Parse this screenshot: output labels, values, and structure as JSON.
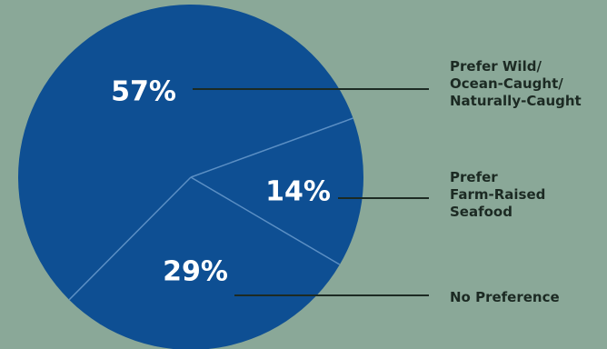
{
  "colors": {
    "background": "#8aa898",
    "slice_fill": "#0e4f93",
    "slice_divider": "#5b8fc4",
    "leader_line": "#1c2a23",
    "percent_text": "#ffffff",
    "legend_text": "#1c2a23"
  },
  "chart_data": {
    "type": "pie",
    "slices": [
      {
        "label": "Prefer Wild/ Ocean-Caught/ Naturally-Caught",
        "label_lines": [
          "Prefer Wild/",
          "Ocean-Caught/",
          "Naturally-Caught"
        ],
        "value": 57,
        "display": "57%"
      },
      {
        "label": "Prefer Farm-Raised Seafood",
        "label_lines": [
          "Prefer",
          "Farm-Raised",
          "Seafood"
        ],
        "value": 14,
        "display": "14%"
      },
      {
        "label": "No Preference",
        "label_lines": [
          "No Preference"
        ],
        "value": 29,
        "display": "29%"
      }
    ],
    "legend_placement": "right"
  }
}
